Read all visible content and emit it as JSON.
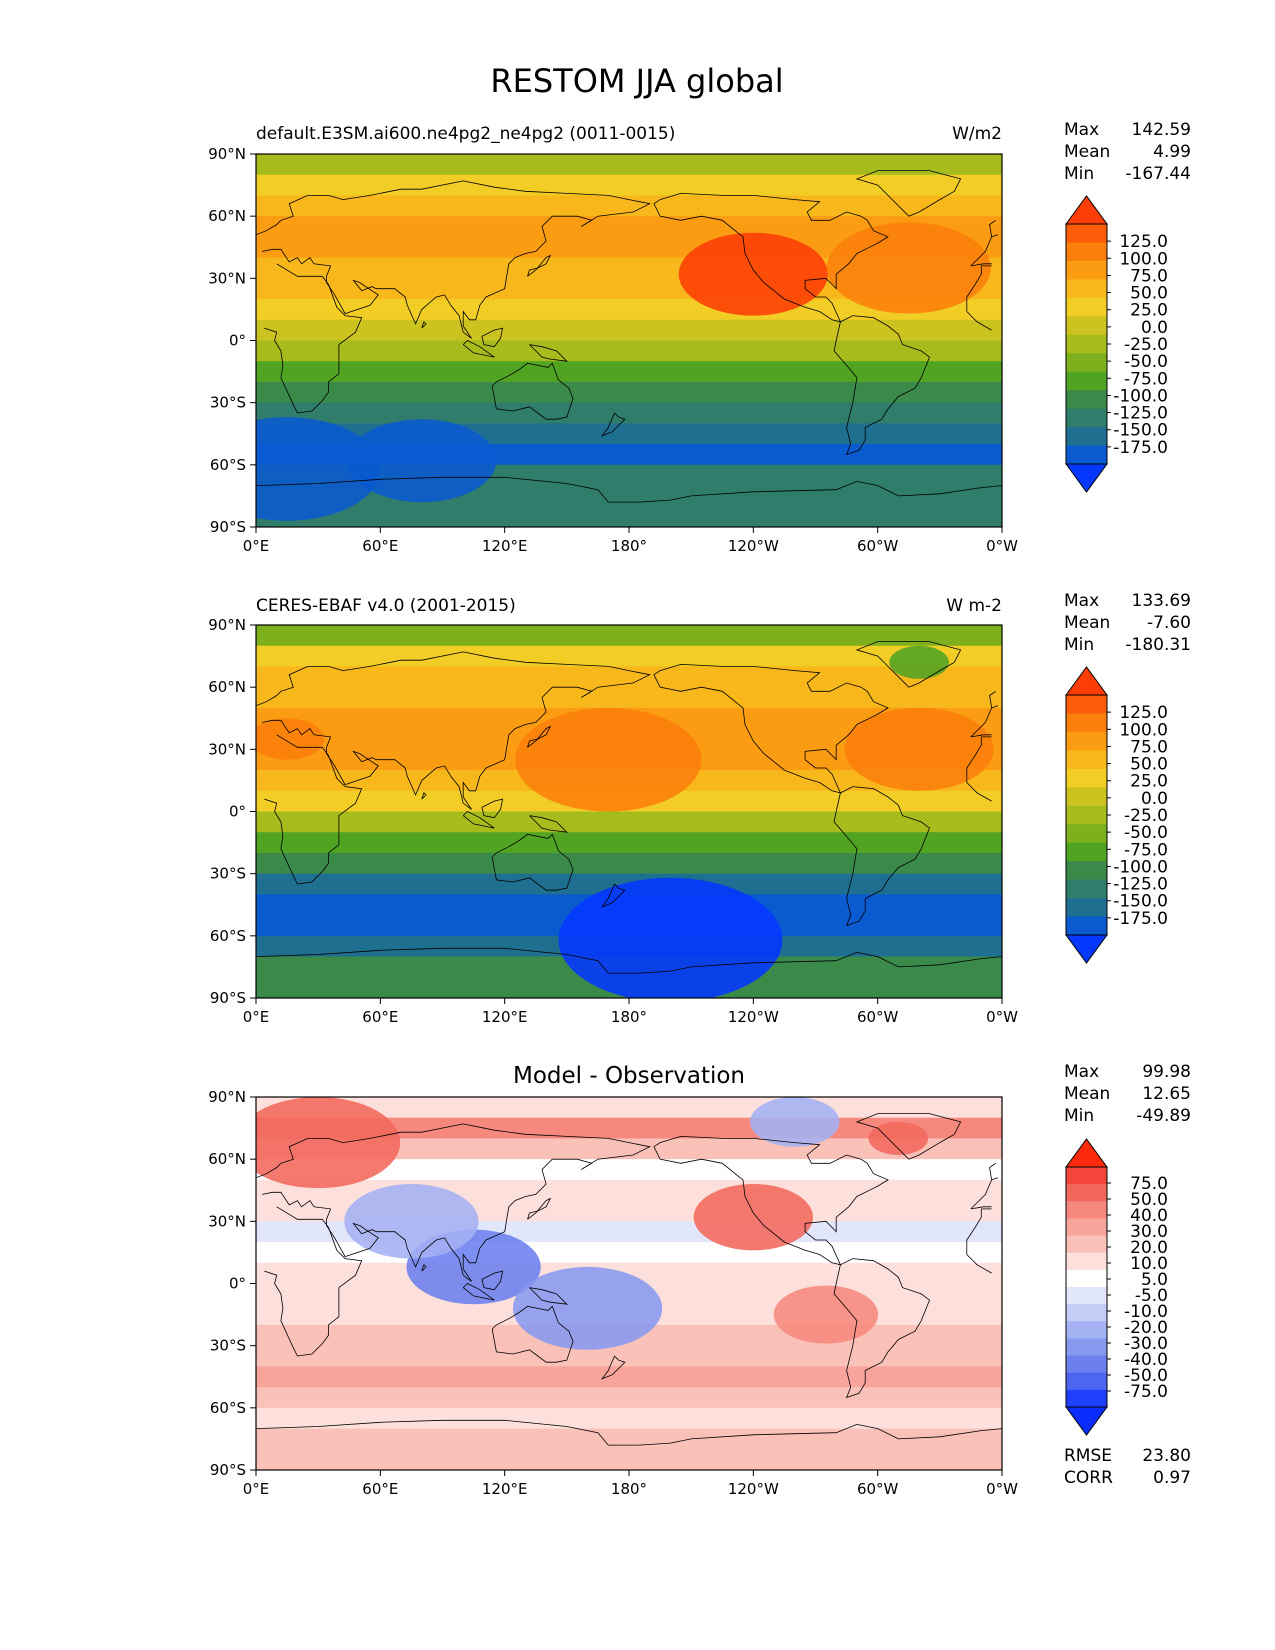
{
  "figure": {
    "title": "RESTOM JJA global"
  },
  "chart_data": [
    {
      "type": "heatmap",
      "panel": "model",
      "title_left": "default.E3SM.ai600.ne4pg2_ne4pg2 (0011-0015)",
      "title_center": "",
      "title_right": "W/m2",
      "xlabels": [
        "0°E",
        "60°E",
        "120°E",
        "180°",
        "120°W",
        "60°W",
        "0°W"
      ],
      "ylabels": [
        "90°N",
        "60°N",
        "30°N",
        "0°",
        "30°S",
        "60°S",
        "90°S"
      ],
      "xlim": [
        0,
        360
      ],
      "ylim": [
        -90,
        90
      ],
      "stats": [
        {
          "label": "Max",
          "value": "142.59"
        },
        {
          "label": "Mean",
          "value": "4.99"
        },
        {
          "label": "Min",
          "value": "-167.44"
        }
      ],
      "extra_stats": [],
      "levels": [
        "125.0",
        "100.0",
        "75.0",
        "50.0",
        "25.0",
        "0.0",
        "-25.0",
        "-50.0",
        "-75.0",
        "-100.0",
        "-125.0",
        "-150.0",
        "-175.0"
      ],
      "colors": [
        "#fd3d06",
        "#fb5c07",
        "#fa7f0b",
        "#fb9c12",
        "#f8b71b",
        "#f1cd26",
        "#cdc320",
        "#a5bc1c",
        "#7db01c",
        "#51a322",
        "#3c8a4a",
        "#2f7d6a",
        "#1f6f90",
        "#0a5ad0",
        "#0537ff"
      ],
      "lat_bands": [
        80,
        70,
        60,
        50,
        40,
        30,
        20,
        10,
        0,
        -10,
        -20,
        -30,
        -40,
        -50,
        -60,
        -70,
        -80
      ],
      "zonal_values": [
        -10,
        40,
        60,
        75,
        80,
        60,
        50,
        40,
        20,
        -15,
        -60,
        -90,
        -115,
        -150,
        -160,
        -120,
        -110
      ],
      "features": [
        {
          "lon": 240,
          "lat": 32,
          "r": 20,
          "value": 135
        },
        {
          "lon": 315,
          "lat": 35,
          "r": 22,
          "value": 120
        },
        {
          "lon": 15,
          "lat": -62,
          "r": 25,
          "value": -170
        },
        {
          "lon": 80,
          "lat": -58,
          "r": 20,
          "value": -165
        }
      ]
    },
    {
      "type": "heatmap",
      "panel": "observation",
      "title_left": "CERES-EBAF v4.0 (2001-2015)",
      "title_center": "",
      "title_right": "W m-2",
      "xlabels": [
        "0°E",
        "60°E",
        "120°E",
        "180°",
        "120°W",
        "60°W",
        "0°W"
      ],
      "ylabels": [
        "90°N",
        "60°N",
        "30°N",
        "0°",
        "30°S",
        "60°S",
        "90°S"
      ],
      "xlim": [
        0,
        360
      ],
      "ylim": [
        -90,
        90
      ],
      "stats": [
        {
          "label": "Max",
          "value": "133.69"
        },
        {
          "label": "Mean",
          "value": "-7.60"
        },
        {
          "label": "Min",
          "value": "-180.31"
        }
      ],
      "extra_stats": [],
      "levels": [
        "125.0",
        "100.0",
        "75.0",
        "50.0",
        "25.0",
        "0.0",
        "-25.0",
        "-50.0",
        "-75.0",
        "-100.0",
        "-125.0",
        "-150.0",
        "-175.0"
      ],
      "colors": [
        "#fd3d06",
        "#fb5c07",
        "#fa7f0b",
        "#fb9c12",
        "#f8b71b",
        "#f1cd26",
        "#cdc320",
        "#a5bc1c",
        "#7db01c",
        "#51a322",
        "#3c8a4a",
        "#2f7d6a",
        "#1f6f90",
        "#0a5ad0",
        "#0537ff"
      ],
      "lat_bands": [
        80,
        70,
        60,
        50,
        40,
        30,
        20,
        10,
        0,
        -10,
        -20,
        -30,
        -40,
        -50,
        -60,
        -70,
        -80
      ],
      "zonal_values": [
        -30,
        30,
        55,
        70,
        80,
        90,
        75,
        60,
        30,
        -20,
        -70,
        -100,
        -130,
        -155,
        -165,
        -135,
        -100
      ],
      "features": [
        {
          "lon": 170,
          "lat": 25,
          "r": 25,
          "value": 115
        },
        {
          "lon": 320,
          "lat": 30,
          "r": 20,
          "value": 110
        },
        {
          "lon": 15,
          "lat": 35,
          "r": 10,
          "value": 115
        },
        {
          "lon": 200,
          "lat": -62,
          "r": 30,
          "value": -180
        },
        {
          "lon": 320,
          "lat": 72,
          "r": 8,
          "value": -60
        }
      ]
    },
    {
      "type": "heatmap",
      "panel": "difference",
      "title_left": "",
      "title_center": "Model - Observation",
      "title_right": "",
      "xlabels": [
        "0°E",
        "60°E",
        "120°E",
        "180°",
        "120°W",
        "60°W",
        "0°W"
      ],
      "ylabels": [
        "90°N",
        "60°N",
        "30°N",
        "0°",
        "30°S",
        "60°S",
        "90°S"
      ],
      "xlim": [
        0,
        360
      ],
      "ylim": [
        -90,
        90
      ],
      "stats": [
        {
          "label": "Max",
          "value": "99.98"
        },
        {
          "label": "Mean",
          "value": "12.65"
        },
        {
          "label": "Min",
          "value": "-49.89"
        }
      ],
      "extra_stats": [
        {
          "label": "RMSE",
          "value": "23.80"
        },
        {
          "label": "CORR",
          "value": "0.97"
        }
      ],
      "levels": [
        "75.0",
        "50.0",
        "40.0",
        "30.0",
        "20.0",
        "10.0",
        "5.0",
        "-5.0",
        "-10.0",
        "-20.0",
        "-30.0",
        "-40.0",
        "-50.0",
        "-75.0"
      ],
      "colors": [
        "#fb2a0d",
        "#f4453a",
        "#f3685c",
        "#f6887d",
        "#f8a49b",
        "#fac1b9",
        "#fde0dc",
        "#ffffff",
        "#e1e6fb",
        "#c3cdf6",
        "#a4b1f2",
        "#8799ef",
        "#6b80ee",
        "#4e65f2",
        "#1f3ffb",
        "#0b2cff"
      ],
      "lat_bands": [
        80,
        70,
        60,
        50,
        40,
        30,
        20,
        10,
        0,
        -10,
        -20,
        -30,
        -40,
        -50,
        -60,
        -70,
        -80
      ],
      "zonal_values": [
        15,
        40,
        20,
        5,
        15,
        10,
        0,
        5,
        15,
        15,
        12,
        22,
        22,
        30,
        20,
        10,
        20
      ],
      "features": [
        {
          "lon": 30,
          "lat": 68,
          "r": 22,
          "value": 60
        },
        {
          "lon": 240,
          "lat": 32,
          "r": 16,
          "value": 70
        },
        {
          "lon": 105,
          "lat": 8,
          "r": 18,
          "value": -35
        },
        {
          "lon": 75,
          "lat": 30,
          "r": 18,
          "value": -15
        },
        {
          "lon": 160,
          "lat": -12,
          "r": 20,
          "value": -25
        },
        {
          "lon": 275,
          "lat": -15,
          "r": 14,
          "value": 45
        },
        {
          "lon": 310,
          "lat": 70,
          "r": 8,
          "value": 55
        },
        {
          "lon": 260,
          "lat": 78,
          "r": 12,
          "value": -15
        }
      ]
    }
  ]
}
